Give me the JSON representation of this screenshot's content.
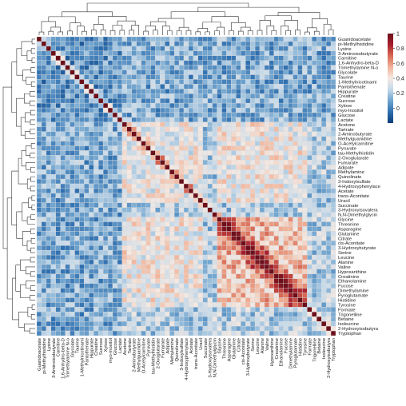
{
  "chart_data": {
    "type": "heatmap",
    "title": "",
    "xlabel": "",
    "ylabel": "",
    "variables": [
      "Guanidoacetate",
      "pi-Methylhistidine",
      "Lysine",
      "3-Aminoisobutyrate",
      "Carnitine",
      "1,6-Anhydro-beta-D",
      "Trimethylamine N-o",
      "Glycolate",
      "Taurine",
      "1-Methylnicotinami",
      "Pantothenate",
      "Hippurate",
      "Creatine",
      "Sucrose",
      "Xylose",
      "myo-Inositol",
      "Glucose",
      "Lactate",
      "Acetone",
      "Tartrate",
      "2-Aminobutyrate",
      "Methylguanidine",
      "O-Acetylcarnitine",
      "Pyruvate",
      "tau-Methylhistidin",
      "2-Oxoglutarate",
      "Fumarate",
      "Adipate",
      "Methylamine",
      "Quinolinate",
      "3-Indoxylsulfate",
      "4-Hydroxyphenylace",
      "Acetate",
      "trans-Aconitate",
      "Uracil",
      "Succinate",
      "3-Hydroxyisovalera",
      "N,N-Dimethylglycin",
      "Glycine",
      "Threonine",
      "Asparagine",
      "Glutamine",
      "Citrate",
      "cis-Aconitate",
      "3-Hydroxybutyrate",
      "Serine",
      "Leucine",
      "Alanine",
      "Valine",
      "Hypoxanthine",
      "Creatinine",
      "Ethanolamine",
      "Fucose",
      "Dimethylamine",
      "Pyroglutamate",
      "Histidine",
      "Tyrosine",
      "Formate",
      "Trigonelline",
      "Betaine",
      "Isoleucine",
      "2-Hydroxyisobutyra",
      "Tryptophan"
    ],
    "value_range": [
      -0.2,
      1
    ],
    "colorbar_ticks": [
      0,
      0.2,
      0.4,
      0.6,
      0.8,
      1
    ],
    "colormap": [
      "#0a3d7a",
      "#2f6fb0",
      "#6fa4cf",
      "#c4d9ea",
      "#f5e9e2",
      "#f1b49a",
      "#d96a55",
      "#a7202c",
      "#6b0f1a"
    ],
    "legend_position": "right",
    "grid": true,
    "hot_block": {
      "start": "Glycine",
      "end": "Tyrosine",
      "level": 0.55
    },
    "upper_block": {
      "start": "Guanidoacetate",
      "end": "Lactate",
      "level": 0.05
    },
    "mid_block": {
      "start": "Acetone",
      "end": "Uracil",
      "level": 0.35
    },
    "diagonal_value": 1
  },
  "colors": {
    "cell_border": "#d9d9d9",
    "dendrogram": "#333333",
    "label": "#222222"
  }
}
